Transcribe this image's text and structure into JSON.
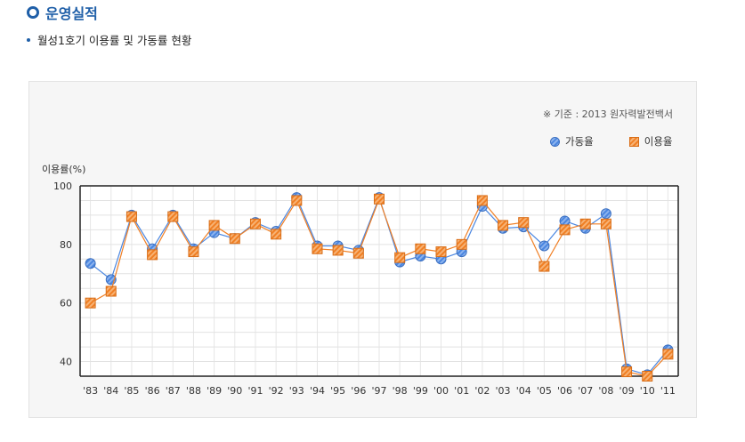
{
  "header": {
    "title": "운영실적",
    "subtitle": "월성1호기 이용률 및 가동률 현황"
  },
  "panel": {
    "source_note": "※ 기준 : 2013 원자력발전백서"
  },
  "colors": {
    "operation": "#4a86e0",
    "utilization": "#f07f24",
    "title": "#1f5fa8"
  },
  "chart_data": {
    "type": "line",
    "title": "",
    "ylabel": "이용률(%)",
    "xlabel": "",
    "ylim": [
      35,
      100
    ],
    "yticks": [
      40,
      60,
      80,
      100
    ],
    "grid": true,
    "legend_position": "top-right",
    "categories": [
      "'83",
      "'84",
      "'85",
      "'86",
      "'87",
      "'88",
      "'89",
      "'90",
      "'91",
      "'92",
      "'93",
      "'94",
      "'95",
      "'96",
      "'97",
      "'98",
      "'99",
      "'00",
      "'01",
      "'02",
      "'03",
      "'04",
      "'05",
      "'06",
      "'07",
      "'08",
      "'09",
      "'10",
      "'11"
    ],
    "series": [
      {
        "name": "가동율",
        "marker": "circle",
        "values": [
          73.5,
          68,
          90,
          78.5,
          90,
          78.5,
          84,
          82,
          87.5,
          84.5,
          96,
          79.5,
          79.5,
          78,
          96,
          74,
          76,
          75,
          77.5,
          93,
          85.5,
          86,
          79.5,
          88,
          85.5,
          90.5,
          37.5,
          35.5,
          44
        ]
      },
      {
        "name": "이용율",
        "marker": "square",
        "values": [
          60,
          64,
          89.5,
          76.5,
          89.5,
          77.5,
          86.5,
          82,
          87,
          83.5,
          95,
          78.5,
          78,
          77,
          95.5,
          75.5,
          78.5,
          77.5,
          80,
          95,
          86.5,
          87.5,
          72.5,
          85,
          87,
          87,
          36.5,
          35,
          42.5
        ]
      }
    ]
  }
}
